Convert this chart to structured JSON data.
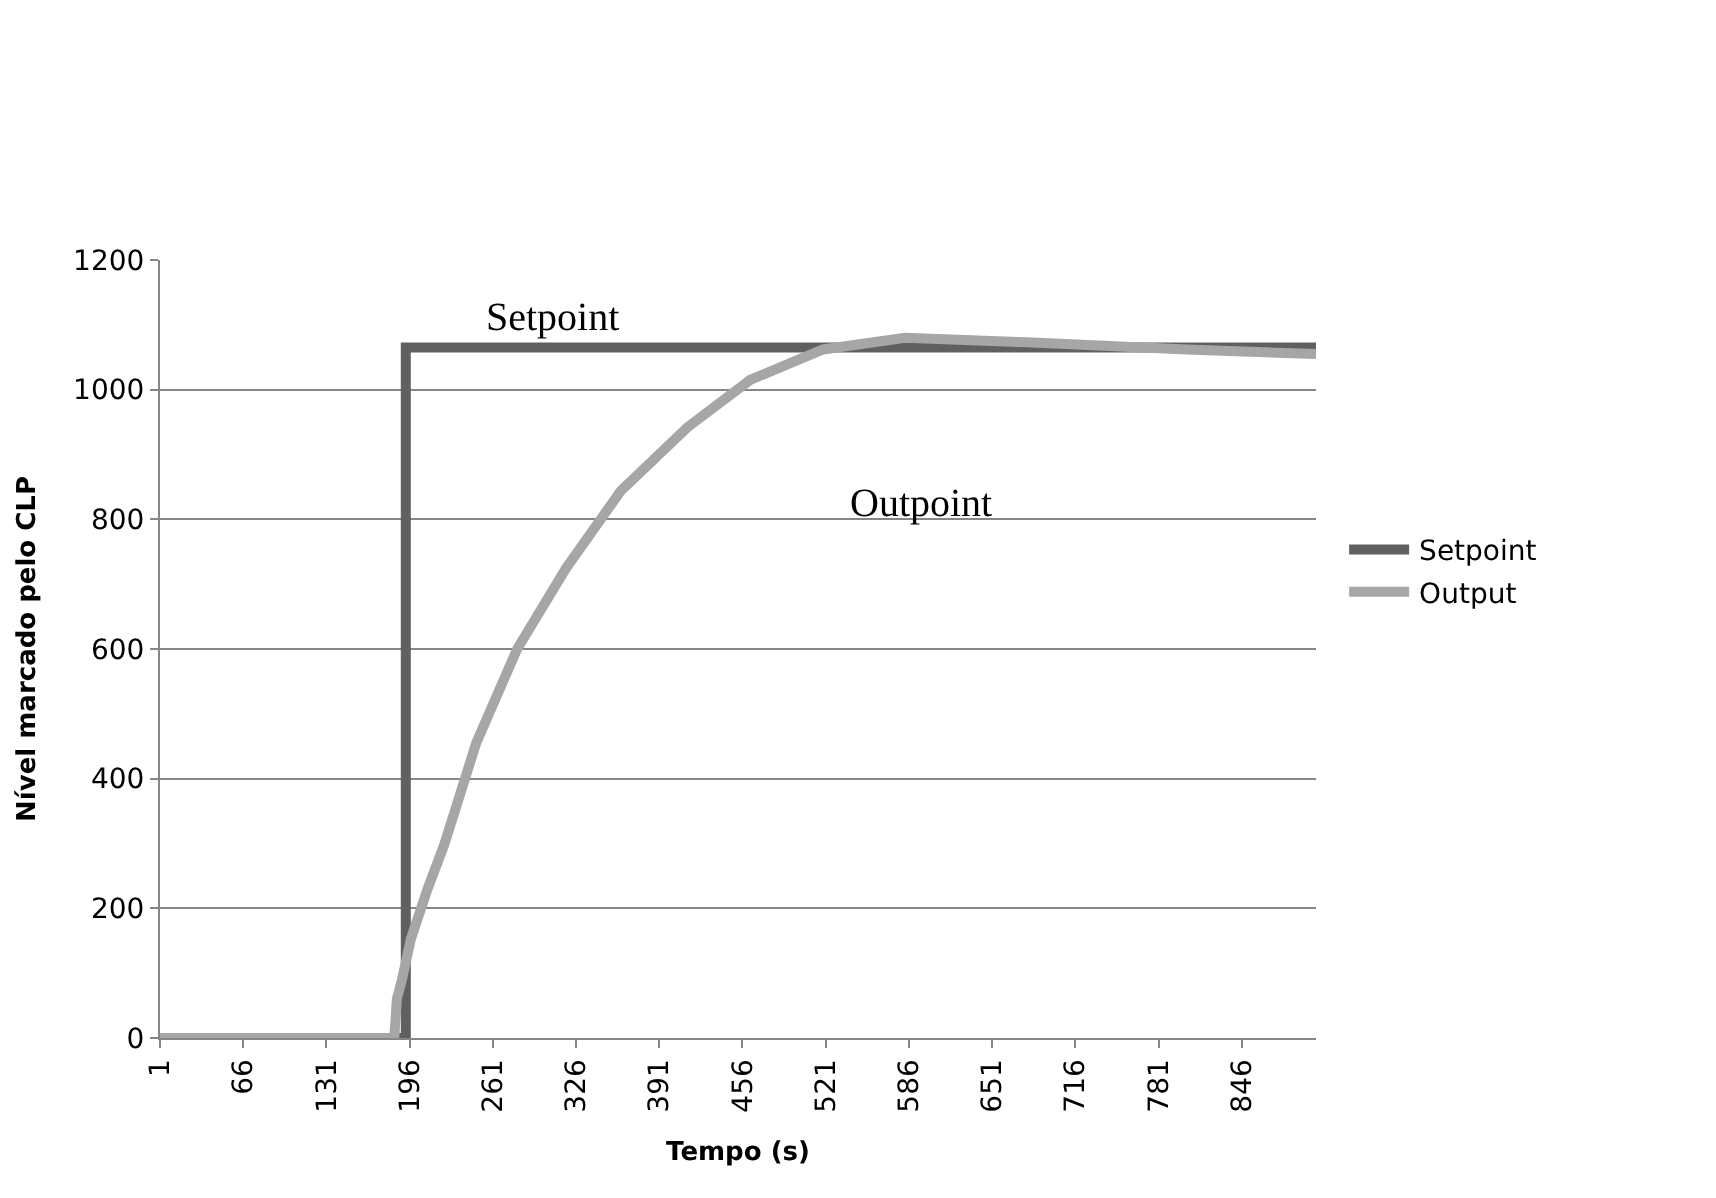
{
  "chart_data": {
    "type": "line",
    "xlabel": "Tempo (s)",
    "ylabel": "Nível marcado pelo CLP",
    "xlim": [
      1,
      904
    ],
    "xticks": [
      1,
      66,
      131,
      196,
      261,
      326,
      391,
      456,
      521,
      586,
      651,
      716,
      781,
      846
    ],
    "ylim": [
      0,
      1200
    ],
    "yticks": [
      0,
      200,
      400,
      600,
      800,
      1000,
      1200
    ],
    "grid": "y",
    "legend": "right",
    "marker": "none",
    "line_style": "solid",
    "series": [
      {
        "name": "Setpoint",
        "color": "#606060",
        "x": [
          1,
          193,
          193,
          904
        ],
        "values": [
          0,
          0,
          1065,
          1065
        ]
      },
      {
        "name": "Output",
        "color": "#a6a6a6",
        "x": [
          1,
          184,
          186,
          190,
          197,
          210,
          223,
          248,
          280,
          318,
          361,
          413,
          462,
          519,
          583,
          678,
          803,
          904
        ],
        "values": [
          0,
          0,
          60,
          90,
          153,
          230,
          298,
          455,
          600,
          724,
          844,
          942,
          1015,
          1062,
          1080,
          1073,
          1062,
          1055
        ]
      }
    ],
    "annotations": [
      "Setpoint",
      "Outpoint"
    ]
  }
}
